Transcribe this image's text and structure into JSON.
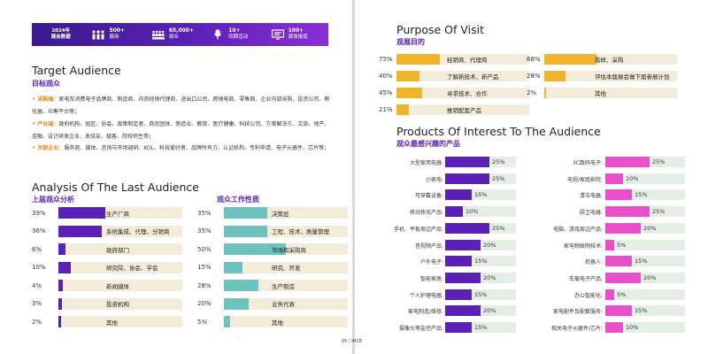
{
  "colors": {
    "purple": "#5b21b6",
    "teal": "#6cc3be",
    "gold": "#f0b42a",
    "magenta": "#e84fc8",
    "orange": "#e8831e",
    "track_light": "#f2ecd8",
    "track_green": "#e4eee4"
  },
  "stats": {
    "year_line1": "2024年",
    "year_line2": "展会数据",
    "items": [
      {
        "value": "500+",
        "label": "展商",
        "icon": "people-icon"
      },
      {
        "value": "65,000+",
        "label": "观众",
        "icon": "crowd-icon"
      },
      {
        "value": "10+",
        "label": "同期活动",
        "icon": "microphone-icon"
      },
      {
        "value": "100+",
        "label": "媒体报道",
        "icon": "monitor-icon"
      }
    ]
  },
  "target_audience": {
    "title_en": "Target Audience",
    "title_cn": "目标观众",
    "items": [
      {
        "label": "采购端：",
        "text": "家电及消费电子品牌商、制造商、内资经销代理商、进出口公司、跨境电商、零售商、企业内部采购、投资公司、孵化器、众筹平台等；"
      },
      {
        "label": "产业端：",
        "text": "政府机构、园区、协会、政策制定者、商贸团体、制造业、教育、医疗健康、科技公司、方案解决方、文旅、地产、金融、设计研发企业、发烧友、极客、院校师生等；"
      },
      {
        "label": "关联企业：",
        "text": "服务商、媒体、咨询与市场调研、KOL、科技爱好者、品牌所有方、认证机构、专利申请、电子元器件、芯片等；"
      }
    ]
  },
  "analysis": {
    "title_en": "Analysis Of The Last Audience",
    "left_title": "上届观众分析",
    "right_title": "观众工作性质",
    "left": [
      {
        "pct": "39%",
        "value": 39,
        "label": "生产厂商"
      },
      {
        "pct": "36%",
        "value": 36,
        "label": "系统集成、代理、分销商"
      },
      {
        "pct": "6%",
        "value": 6,
        "label": "政府部门"
      },
      {
        "pct": "10%",
        "value": 10,
        "label": "研究院、协会、学会"
      },
      {
        "pct": "4%",
        "value": 4,
        "label": "新闻媒体"
      },
      {
        "pct": "3%",
        "value": 3,
        "label": "投资机构"
      },
      {
        "pct": "2%",
        "value": 2,
        "label": "其他"
      }
    ],
    "right": [
      {
        "pct": "35%",
        "value": 35,
        "label": "决策层"
      },
      {
        "pct": "35%",
        "value": 35,
        "label": "工程、技术、质量管理"
      },
      {
        "pct": "50%",
        "value": 50,
        "label": "市场和采购商"
      },
      {
        "pct": "15%",
        "value": 15,
        "label": "研究、开发"
      },
      {
        "pct": "28%",
        "value": 28,
        "label": "生产制造"
      },
      {
        "pct": "20%",
        "value": 20,
        "label": "业务代表"
      },
      {
        "pct": "5%",
        "value": 5,
        "label": "其他"
      }
    ]
  },
  "purpose": {
    "title_en": "Purpose Of Visit",
    "title_cn": "观展目的",
    "left": [
      {
        "pct": "75%",
        "value": 75,
        "label": "经销商、代理商"
      },
      {
        "pct": "40%",
        "value": 40,
        "label": "了解新技术、新产品"
      },
      {
        "pct": "45%",
        "value": 45,
        "label": "寻求技术、合作"
      },
      {
        "pct": "21%",
        "value": 21,
        "label": "推销配套产品"
      }
    ],
    "right": [
      {
        "pct": "68%",
        "value": 68,
        "label": "看样、采购"
      },
      {
        "pct": "28%",
        "value": 28,
        "label": "评估本届展会做下届参展计划"
      },
      {
        "pct": "2%",
        "value": 2,
        "label": "其他"
      }
    ]
  },
  "products": {
    "title_en": "Products Of Interest To The Audience",
    "title_cn": "观众最感兴趣的产品",
    "left": [
      {
        "name": "大型家用电器:",
        "pct": "25%",
        "value": 25
      },
      {
        "name": "小家电:",
        "pct": "25%",
        "value": 25
      },
      {
        "name": "可穿戴设备:",
        "pct": "15%",
        "value": 15
      },
      {
        "name": "移动快充产品:",
        "pct": "10%",
        "value": 10
      },
      {
        "name": "手机、平板周边产品:",
        "pct": "25%",
        "value": 25
      },
      {
        "name": "音视频产品:",
        "pct": "20%",
        "value": 20
      },
      {
        "name": "户外电子:",
        "pct": "15%",
        "value": 15
      },
      {
        "name": "智能家居:",
        "pct": "20%",
        "value": 20
      },
      {
        "name": "个人护理电器:",
        "pct": "15%",
        "value": 15
      },
      {
        "name": "家电制造/维修:",
        "pct": "20%",
        "value": 20
      },
      {
        "name": "摄像头等监控产品:",
        "pct": "15%",
        "value": 15
      }
    ],
    "right": [
      {
        "name": "3C数码电子:",
        "pct": "25%",
        "value": 25
      },
      {
        "name": "电视/家庭影院:",
        "pct": "10%",
        "value": 10
      },
      {
        "name": "清洁电器:",
        "pct": "15%",
        "value": 15
      },
      {
        "name": "厨卫电器:",
        "pct": "25%",
        "value": 25
      },
      {
        "name": "电脑、游戏周边产品:",
        "pct": "20%",
        "value": 20
      },
      {
        "name": "家电物联网技术:",
        "pct": "5%",
        "value": 5
      },
      {
        "name": "机器人:",
        "pct": "15%",
        "value": 15
      },
      {
        "name": "车载电子产品:",
        "pct": "20%",
        "value": 20
      },
      {
        "name": "办公智能化:",
        "pct": "5%",
        "value": 5
      },
      {
        "name": "家电配件及配套服务:",
        "pct": "15%",
        "value": 15
      },
      {
        "name": "相关电子元器件/芯片:",
        "pct": "10%",
        "value": 10
      }
    ]
  },
  "footer": {
    "text": "05 / IHCE"
  }
}
